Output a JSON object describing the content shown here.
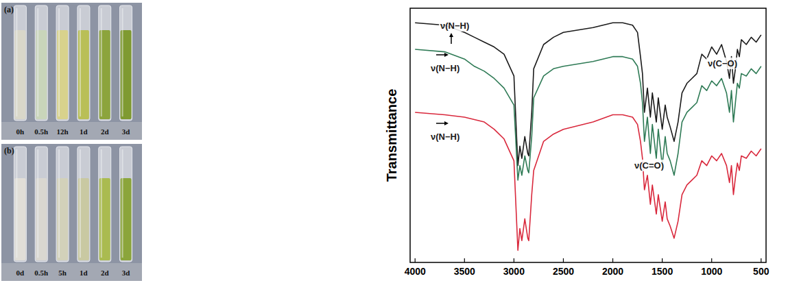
{
  "photos": [
    {
      "label": "(a)",
      "times": [
        "0h",
        "0.5h",
        "12h",
        "1d",
        "2d",
        "3d"
      ],
      "colors": [
        "#d9d7c9",
        "#c9d5ba",
        "#d8d28c",
        "#b9bf57",
        "#8ca43c",
        "#7f9a31"
      ]
    },
    {
      "label": "(b)",
      "times": [
        "0d",
        "0.5h",
        "5h",
        "1d",
        "2d",
        "3d"
      ],
      "colors": [
        "#e1ded7",
        "#d9d7d0",
        "#d2d1ba",
        "#c9c9a2",
        "#aabb50",
        "#8ba53b"
      ]
    }
  ],
  "chart_data": {
    "type": "line",
    "y_label": "Transmittance",
    "x": [
      4000,
      3700,
      3500,
      3400,
      3300,
      3200,
      3100,
      3000,
      2960,
      2940,
      2920,
      2890,
      2860,
      2850,
      2820,
      2800,
      2700,
      2600,
      2500,
      2200,
      2000,
      1900,
      1800,
      1750,
      1720,
      1700,
      1680,
      1650,
      1620,
      1600,
      1560,
      1540,
      1500,
      1470,
      1450,
      1420,
      1380,
      1340,
      1300,
      1250,
      1200,
      1150,
      1100,
      1050,
      1000,
      950,
      900,
      850,
      820,
      800,
      780,
      760,
      740,
      720,
      700,
      650,
      600,
      550,
      500
    ],
    "series": [
      {
        "color": "#1a1a1a",
        "values": [
          99,
          98,
          95,
          93,
          91,
          89,
          86,
          77,
          40,
          48,
          43,
          52,
          45,
          44,
          62,
          80,
          90,
          93,
          95,
          97,
          99,
          99,
          98,
          95,
          85,
          78,
          62,
          72,
          60,
          70,
          58,
          68,
          55,
          65,
          60,
          56,
          50,
          58,
          70,
          74,
          76,
          78,
          86,
          84,
          89,
          86,
          90,
          83,
          76,
          85,
          74,
          80,
          88,
          85,
          92,
          90,
          93,
          91,
          94
        ]
      },
      {
        "color": "#2e7a55",
        "values": [
          88,
          87,
          84,
          81,
          79,
          76,
          72,
          65,
          34,
          40,
          36,
          44,
          38,
          37,
          52,
          68,
          77,
          80,
          81,
          83,
          85,
          85,
          84,
          81,
          74,
          66,
          50,
          60,
          45,
          57,
          43,
          55,
          40,
          52,
          45,
          42,
          36,
          45,
          58,
          62,
          64,
          66,
          73,
          71,
          75,
          73,
          76,
          70,
          62,
          71,
          58,
          66,
          74,
          72,
          78,
          77,
          80,
          78,
          81
        ]
      },
      {
        "color": "#d9283c",
        "values": [
          62,
          61,
          60,
          59,
          58,
          55,
          51,
          42,
          5,
          14,
          9,
          18,
          10,
          9,
          28,
          38,
          50,
          53,
          55,
          58,
          61,
          61,
          60,
          57,
          50,
          43,
          30,
          36,
          24,
          32,
          20,
          28,
          17,
          25,
          18,
          15,
          10,
          17,
          28,
          32,
          34,
          36,
          42,
          40,
          44,
          42,
          45,
          40,
          33,
          40,
          28,
          35,
          41,
          38,
          44,
          43,
          46,
          44,
          47
        ]
      }
    ],
    "annotations": [
      "ν(N−H)",
      "ν(N−H)",
      "ν(N−H)",
      "ν(C=O)",
      "ν(C−O)"
    ],
    "xlim": [
      4050,
      450
    ],
    "xticks": [
      4000,
      3500,
      3000,
      2500,
      2000,
      1500,
      1000,
      500
    ],
    "ylim": [
      0,
      105
    ],
    "yticks": [],
    "tick_labels": "x",
    "grid": false
  }
}
